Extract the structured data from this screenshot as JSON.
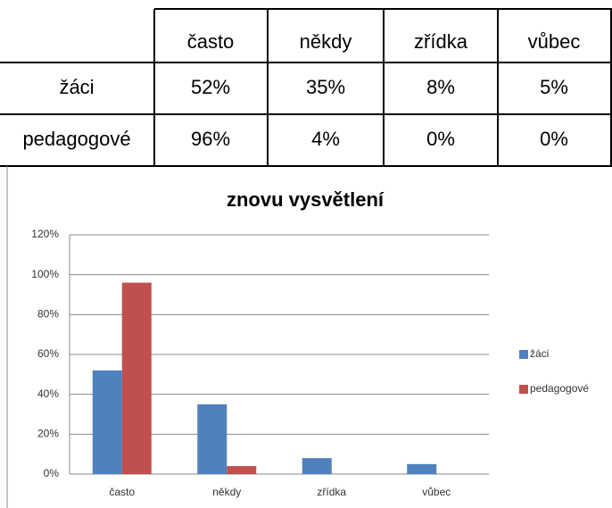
{
  "table": {
    "header": [
      "často",
      "někdy",
      "zřídka",
      "vůbec"
    ],
    "rows": [
      [
        "žáci",
        "52%",
        "35%",
        "8%",
        "5%"
      ],
      [
        "pedagogové",
        "96%",
        "4%",
        "0%",
        "0%"
      ]
    ]
  },
  "chart_data": {
    "type": "bar",
    "title": "znovu vysvětlení",
    "categories": [
      "často",
      "někdy",
      "zřídka",
      "vůbec"
    ],
    "series": [
      {
        "name": "žáci",
        "color": "#4f81bd",
        "values": [
          52,
          35,
          8,
          5
        ]
      },
      {
        "name": "pedagogové",
        "color": "#c0504d",
        "values": [
          96,
          4,
          0,
          0
        ]
      }
    ],
    "ylim": [
      0,
      120
    ],
    "yticks": [
      {
        "value": 0,
        "label": "0%"
      },
      {
        "value": 20,
        "label": "20%"
      },
      {
        "value": 40,
        "label": "40%"
      },
      {
        "value": 60,
        "label": "60%"
      },
      {
        "value": 80,
        "label": "80%"
      },
      {
        "value": 100,
        "label": "100%"
      },
      {
        "value": 120,
        "label": "120%"
      }
    ],
    "grid": true,
    "legend": "right"
  }
}
